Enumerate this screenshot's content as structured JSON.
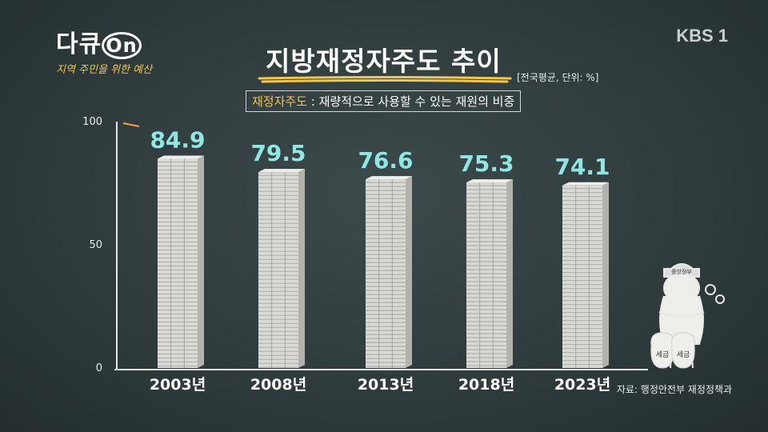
{
  "logo": {
    "title_prefix": "다큐",
    "title_on": "On",
    "subtitle": "지역 주민을 위한 예산"
  },
  "broadcaster": "KBS 1",
  "heading": {
    "title": "지방재정자주도 추이",
    "unit": "[전국평균, 단위: %]",
    "definition_term": "재정자주도",
    "definition_text": " : 재량적으로 사용할 수 있는 재원의 비중"
  },
  "source": "자료: 행정안전부 재정정책과",
  "cartoon": {
    "hat_label": "중앙정부",
    "bag_label": "세금",
    "bag_label_2": "세금"
  },
  "colors": {
    "value_label": "#8fe6e3",
    "accent": "#f2c84b",
    "bar_face": "#d9d9d6",
    "bar_side": "#b3b3ae"
  },
  "chart_data": {
    "type": "bar",
    "title": "지방재정자주도 추이",
    "categories": [
      "2003년",
      "2008년",
      "2013년",
      "2018년",
      "2023년"
    ],
    "values": [
      84.9,
      79.5,
      76.6,
      75.3,
      74.1
    ],
    "value_labels": [
      "84.9",
      "79.5",
      "76.6",
      "75.3",
      "74.1"
    ],
    "y_ticks": [
      "100",
      "50",
      "0"
    ],
    "y_tick_values": [
      100,
      50,
      0
    ],
    "ylim": [
      0,
      100
    ],
    "grid": false,
    "xlabel": "",
    "ylabel": ""
  }
}
